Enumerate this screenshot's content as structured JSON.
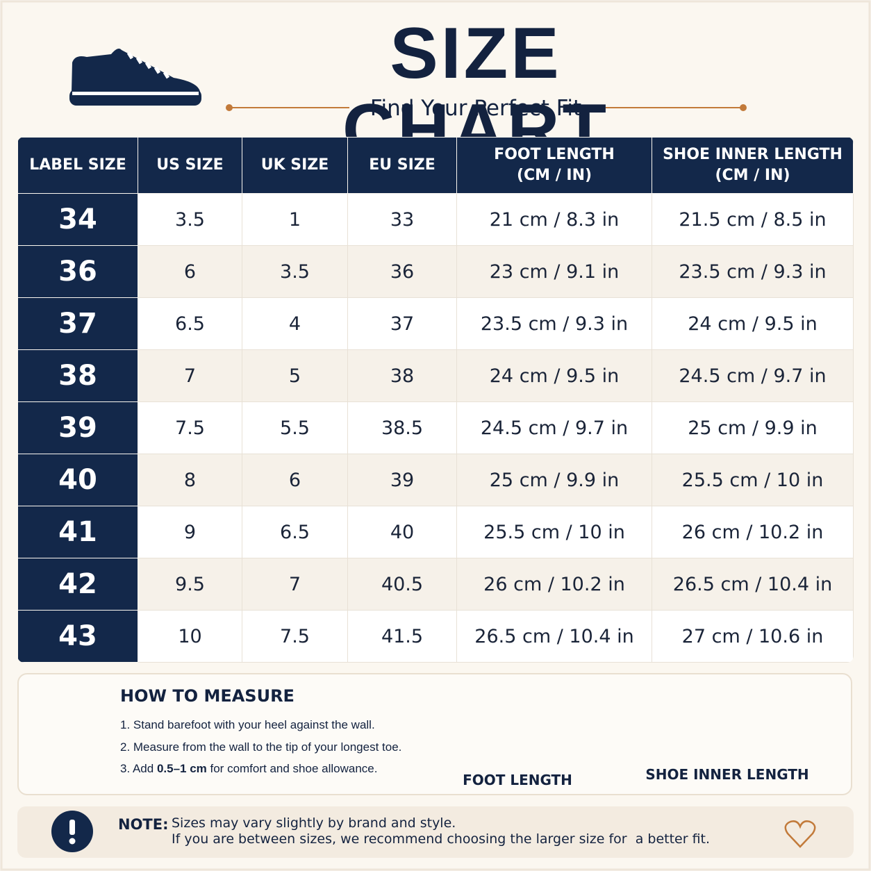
{
  "header": {
    "title": "SIZE CHART",
    "subtitle": "Find Your Perfect Fit"
  },
  "table": {
    "columns": [
      [
        "LABEL SIZE"
      ],
      [
        "US SIZE"
      ],
      [
        "UK SIZE"
      ],
      [
        "EU SIZE"
      ],
      [
        "FOOT LENGTH",
        "(CM / IN)"
      ],
      [
        "SHOE INNER LENGTH",
        "(CM / IN)"
      ]
    ],
    "rows": [
      [
        "34",
        "3.5",
        "1",
        "33",
        "21 cm / 8.3 in",
        "21.5 cm / 8.5 in"
      ],
      [
        "36",
        "6",
        "3.5",
        "36",
        "23 cm / 9.1 in",
        "23.5 cm / 9.3 in"
      ],
      [
        "37",
        "6.5",
        "4",
        "37",
        "23.5 cm / 9.3 in",
        "24 cm / 9.5 in"
      ],
      [
        "38",
        "7",
        "5",
        "38",
        "24 cm / 9.5 in",
        "24.5 cm / 9.7 in"
      ],
      [
        "39",
        "7.5",
        "5.5",
        "38.5",
        "24.5 cm / 9.7 in",
        "25 cm / 9.9 in"
      ],
      [
        "40",
        "8",
        "6",
        "39",
        "25 cm / 9.9 in",
        "25.5 cm / 10 in"
      ],
      [
        "41",
        "9",
        "6.5",
        "40",
        "25.5 cm / 10 in",
        "26 cm / 10.2 in"
      ],
      [
        "42",
        "9.5",
        "7",
        "40.5",
        "26 cm / 10.2 in",
        "26.5 cm / 10.4 in"
      ],
      [
        "43",
        "10",
        "7.5",
        "41.5",
        "26.5 cm / 10.4 in",
        "27 cm / 10.6 in"
      ]
    ]
  },
  "measure": {
    "title": "HOW TO MEASURE",
    "steps": [
      "1. Stand barefoot with your heel against the wall.",
      "2. Measure from the wall to the tip of your longest toe."
    ],
    "step3": {
      "before": "3. Add ",
      "bold": "0.5–1 cm",
      "after": " for comfort and shoe allowance."
    },
    "foot_label": "FOOT LENGTH",
    "shoe_label": "SHOE INNER LENGTH"
  },
  "note": {
    "label": "NOTE:",
    "lines": [
      "Sizes may vary slightly by brand and style.",
      "If you are between sizes, we recommend choosing the larger size for  a better fit."
    ]
  }
}
